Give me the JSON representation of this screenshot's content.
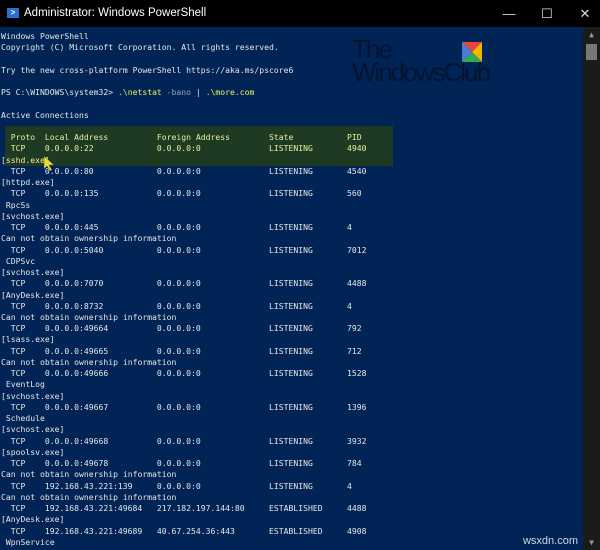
{
  "window": {
    "title": "Administrator: Windows PowerShell",
    "minimize": "—",
    "maximize": "☐",
    "close": "✕"
  },
  "banner": [
    "Windows PowerShell",
    "Copyright (C) Microsoft Corporation. All rights reserved.",
    "",
    "Try the new cross-platform PowerShell https://aka.ms/pscore6",
    ""
  ],
  "prompt": {
    "path": "PS C:\\WINDOWS\\system32> ",
    "cmd1": ".\\netstat",
    "arg": " -bano",
    "pipe": " | ",
    "cmd2": ".\\more.com"
  },
  "section_title": "Active Connections",
  "table_headers": {
    "proto": "Proto",
    "local": "Local Address",
    "foreign": "Foreign Address",
    "state": "State",
    "pid": "PID"
  },
  "connections": [
    {
      "proto": "TCP",
      "local": "0.0.0.0:22",
      "foreign": "0.0.0.0:0",
      "state": "LISTENING",
      "pid": "4940",
      "info": [
        "[sshd.exe]"
      ]
    },
    {
      "proto": "TCP",
      "local": "0.0.0.0:80",
      "foreign": "0.0.0.0:0",
      "state": "LISTENING",
      "pid": "4540",
      "info": [
        "[httpd.exe]"
      ]
    },
    {
      "proto": "TCP",
      "local": "0.0.0.0:135",
      "foreign": "0.0.0.0:0",
      "state": "LISTENING",
      "pid": "560",
      "info": [
        " RpcSs",
        "[svchost.exe]"
      ]
    },
    {
      "proto": "TCP",
      "local": "0.0.0.0:445",
      "foreign": "0.0.0.0:0",
      "state": "LISTENING",
      "pid": "4",
      "info": [
        "Can not obtain ownership information"
      ]
    },
    {
      "proto": "TCP",
      "local": "0.0.0.0:5040",
      "foreign": "0.0.0.0:0",
      "state": "LISTENING",
      "pid": "7012",
      "info": [
        " CDPSvc",
        "[svchost.exe]"
      ]
    },
    {
      "proto": "TCP",
      "local": "0.0.0.0:7070",
      "foreign": "0.0.0.0:0",
      "state": "LISTENING",
      "pid": "4488",
      "info": [
        "[AnyDesk.exe]"
      ]
    },
    {
      "proto": "TCP",
      "local": "0.0.0.0:8732",
      "foreign": "0.0.0.0:0",
      "state": "LISTENING",
      "pid": "4",
      "info": [
        "Can not obtain ownership information"
      ]
    },
    {
      "proto": "TCP",
      "local": "0.0.0.0:49664",
      "foreign": "0.0.0.0:0",
      "state": "LISTENING",
      "pid": "792",
      "info": [
        "[lsass.exe]"
      ]
    },
    {
      "proto": "TCP",
      "local": "0.0.0.0:49665",
      "foreign": "0.0.0.0:0",
      "state": "LISTENING",
      "pid": "712",
      "info": [
        "Can not obtain ownership information"
      ]
    },
    {
      "proto": "TCP",
      "local": "0.0.0.0:49666",
      "foreign": "0.0.0.0:0",
      "state": "LISTENING",
      "pid": "1528",
      "info": [
        " EventLog",
        "[svchost.exe]"
      ]
    },
    {
      "proto": "TCP",
      "local": "0.0.0.0:49667",
      "foreign": "0.0.0.0:0",
      "state": "LISTENING",
      "pid": "1396",
      "info": [
        " Schedule",
        "[svchost.exe]"
      ]
    },
    {
      "proto": "TCP",
      "local": "0.0.0.0:49668",
      "foreign": "0.0.0.0:0",
      "state": "LISTENING",
      "pid": "3932",
      "info": [
        "[spoolsv.exe]"
      ]
    },
    {
      "proto": "TCP",
      "local": "0.0.0.0:49678",
      "foreign": "0.0.0.0:0",
      "state": "LISTENING",
      "pid": "784",
      "info": [
        "Can not obtain ownership information"
      ]
    },
    {
      "proto": "TCP",
      "local": "192.168.43.221:139",
      "foreign": "0.0.0.0:0",
      "state": "LISTENING",
      "pid": "4",
      "info": [
        "Can not obtain ownership information"
      ]
    },
    {
      "proto": "TCP",
      "local": "192.168.43.221:49684",
      "foreign": "217.182.197.144:80",
      "state": "ESTABLISHED",
      "pid": "4488",
      "info": [
        "[AnyDesk.exe]"
      ]
    },
    {
      "proto": "TCP",
      "local": "192.168.43.221:49689",
      "foreign": "40.67.254.36:443",
      "state": "ESTABLISHED",
      "pid": "4908",
      "info": [
        " WpnService"
      ]
    }
  ],
  "logo": {
    "line1": "The",
    "line2": "WindowsClub"
  },
  "watermark": "wsxdn.com",
  "colors": {
    "console_bg": "#012456",
    "command": "#f2f25a",
    "highlight": "#1f3a22"
  }
}
